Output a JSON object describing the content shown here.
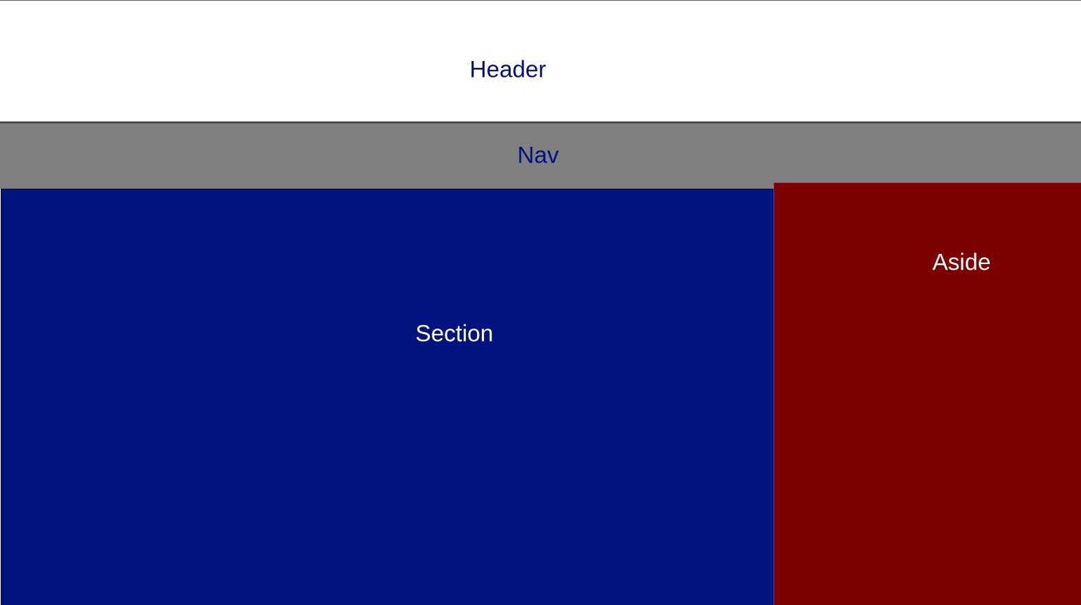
{
  "header": {
    "label": "Header"
  },
  "nav": {
    "label": "Nav"
  },
  "section": {
    "label": "Section"
  },
  "aside": {
    "label": "Aside"
  },
  "colors": {
    "header_bg": "#ffffff",
    "nav_bg": "#808080",
    "section_bg": "#00137f",
    "aside_bg": "#7b0000",
    "dark_text": "#00137f",
    "light_text": "#ffffff"
  }
}
